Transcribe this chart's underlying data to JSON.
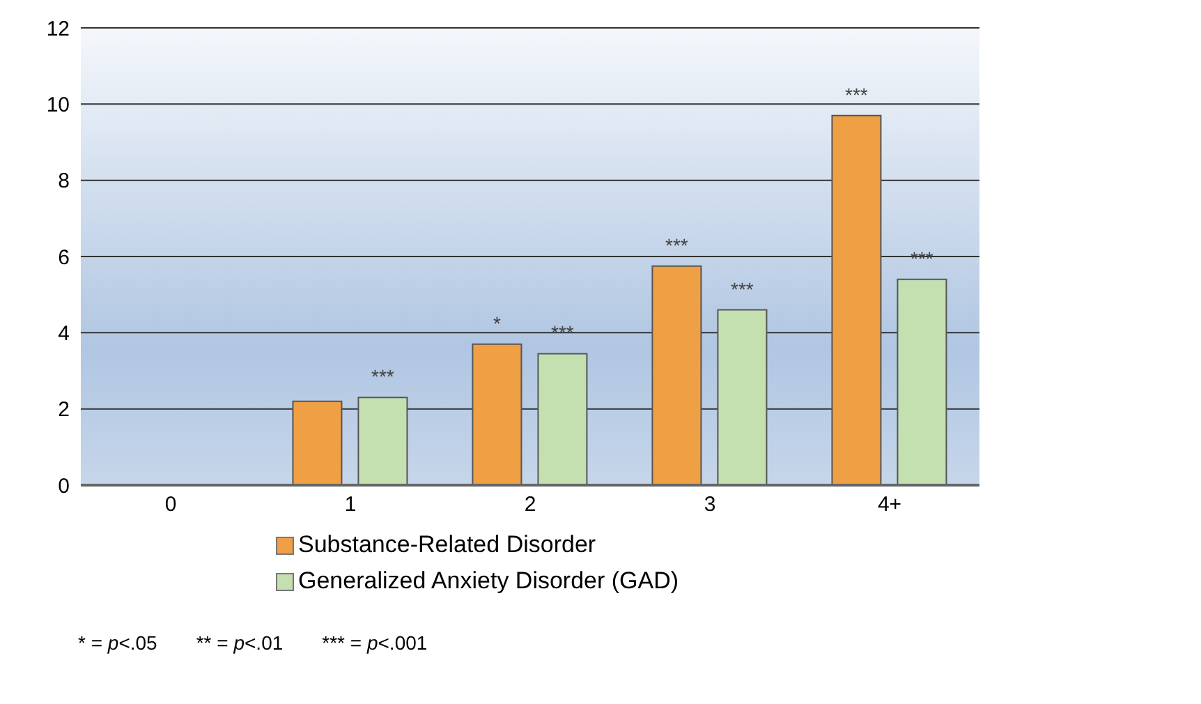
{
  "chart_data": {
    "type": "bar",
    "categories": [
      "0",
      "1",
      "2",
      "3",
      "4+"
    ],
    "series": [
      {
        "name": "Substance-Related Disorder",
        "color": "#f0a044",
        "values": [
          null,
          2.2,
          3.7,
          5.75,
          9.7
        ],
        "value_labels": [
          null,
          null,
          "*",
          "***",
          "***"
        ]
      },
      {
        "name": "Generalized Anxiety Disorder (GAD)",
        "color": "#c4dfb0",
        "values": [
          null,
          2.3,
          3.45,
          4.6,
          5.4
        ],
        "value_labels": [
          null,
          "***",
          "***",
          "***",
          "***"
        ]
      }
    ],
    "ylim": [
      0,
      12
    ],
    "yticks": [
      0,
      2,
      4,
      6,
      8,
      10,
      12
    ],
    "grid": "y",
    "legend": "bottom",
    "annotations": [
      "* = p<.05",
      "** = p<.01",
      "*** = p<.001"
    ]
  }
}
